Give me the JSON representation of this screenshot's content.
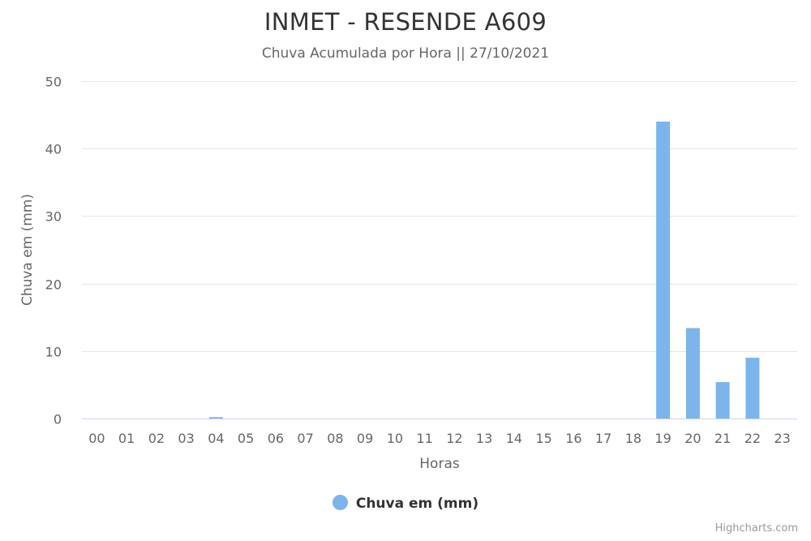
{
  "chart_data": {
    "type": "bar",
    "title": "INMET - RESENDE A609",
    "subtitle": "Chuva Acumulada por Hora || 27/10/2021",
    "xlabel": "Horas",
    "ylabel": "Chuva em (mm)",
    "categories": [
      "00",
      "01",
      "02",
      "03",
      "04",
      "05",
      "06",
      "07",
      "08",
      "09",
      "10",
      "11",
      "12",
      "13",
      "14",
      "15",
      "16",
      "17",
      "18",
      "19",
      "20",
      "21",
      "22",
      "23"
    ],
    "series": [
      {
        "name": "Chuva em (mm)",
        "color": "#7cb5ec",
        "values": [
          0,
          0,
          0,
          0,
          0.2,
          0,
          0,
          0,
          0,
          0,
          0,
          0,
          0,
          0,
          0,
          0,
          0,
          0,
          0,
          44,
          13.4,
          5.4,
          9,
          0
        ]
      }
    ],
    "ylim": [
      0,
      50
    ],
    "yticks": [
      0,
      10,
      20,
      30,
      40,
      50
    ],
    "grid": true,
    "legend_position": "bottom-center"
  },
  "credits": "Highcharts.com"
}
